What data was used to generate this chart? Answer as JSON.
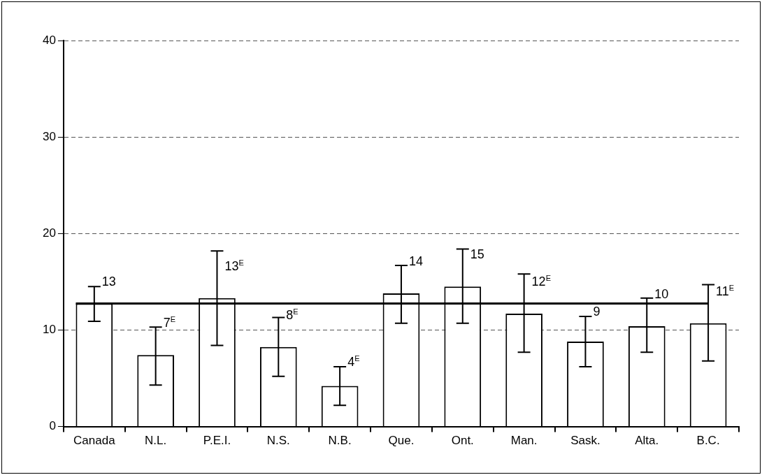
{
  "chart_data": {
    "type": "bar",
    "categories": [
      "Canada",
      "N.L.",
      "P.E.I.",
      "N.S.",
      "N.B.",
      "Que.",
      "Ont.",
      "Man.",
      "Sask.",
      "Alta.",
      "B.C."
    ],
    "values": [
      12.75,
      7.4,
      13.3,
      8.25,
      4.2,
      13.8,
      14.5,
      11.7,
      8.8,
      10.4,
      10.7
    ],
    "color": "#ffffff",
    "errors": [
      [
        10.9,
        14.5
      ],
      [
        4.3,
        10.3
      ],
      [
        8.4,
        18.2
      ],
      [
        5.2,
        11.3
      ],
      [
        2.2,
        6.2
      ],
      [
        10.7,
        16.7
      ],
      [
        10.7,
        18.4
      ],
      [
        7.7,
        15.8
      ],
      [
        6.2,
        11.4
      ],
      [
        7.7,
        13.3
      ],
      [
        6.8,
        14.7
      ]
    ],
    "value_labels": [
      "13",
      "7$^{E}$",
      "13$^{E}$",
      "8$^{E}$",
      "4$^{E}$",
      "14",
      "15",
      "12$^{E}$",
      "9",
      "10",
      "11$^{E}$"
    ],
    "ref_lines": [
      {
        "axis": "y",
        "value": 12.75,
        "color": "#000000"
      }
    ],
    "ylim": [
      0,
      40
    ],
    "yticks": [
      0,
      10,
      20,
      30,
      40
    ],
    "grid": "y",
    "legend": false
  }
}
